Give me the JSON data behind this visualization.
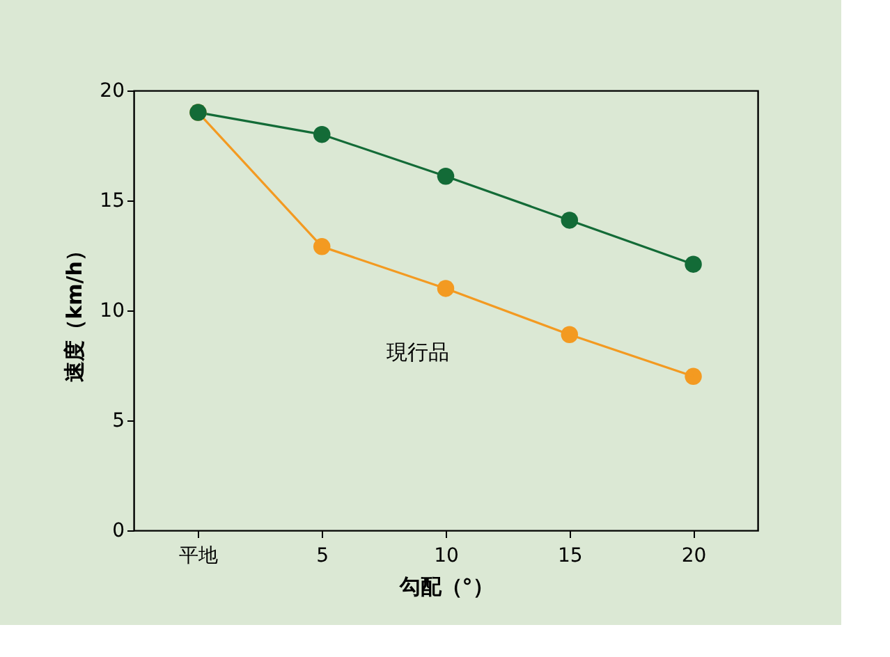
{
  "chart_data": {
    "type": "line",
    "xlabel": "勾配（°）",
    "ylabel": "速度（km/h）",
    "categories": [
      "平地",
      "5",
      "10",
      "15",
      "20"
    ],
    "series": [
      {
        "color": "#136b37",
        "values": [
          19,
          18,
          16.1,
          14.1,
          12.1
        ]
      },
      {
        "name": "現行品",
        "color": "#f39a21",
        "values": [
          19,
          12.9,
          11,
          8.9,
          7
        ]
      }
    ],
    "ylim": [
      0,
      20
    ],
    "yticks": [
      0,
      5,
      10,
      15,
      20
    ],
    "grid": false,
    "marker": "circle",
    "line_style": "solid"
  }
}
